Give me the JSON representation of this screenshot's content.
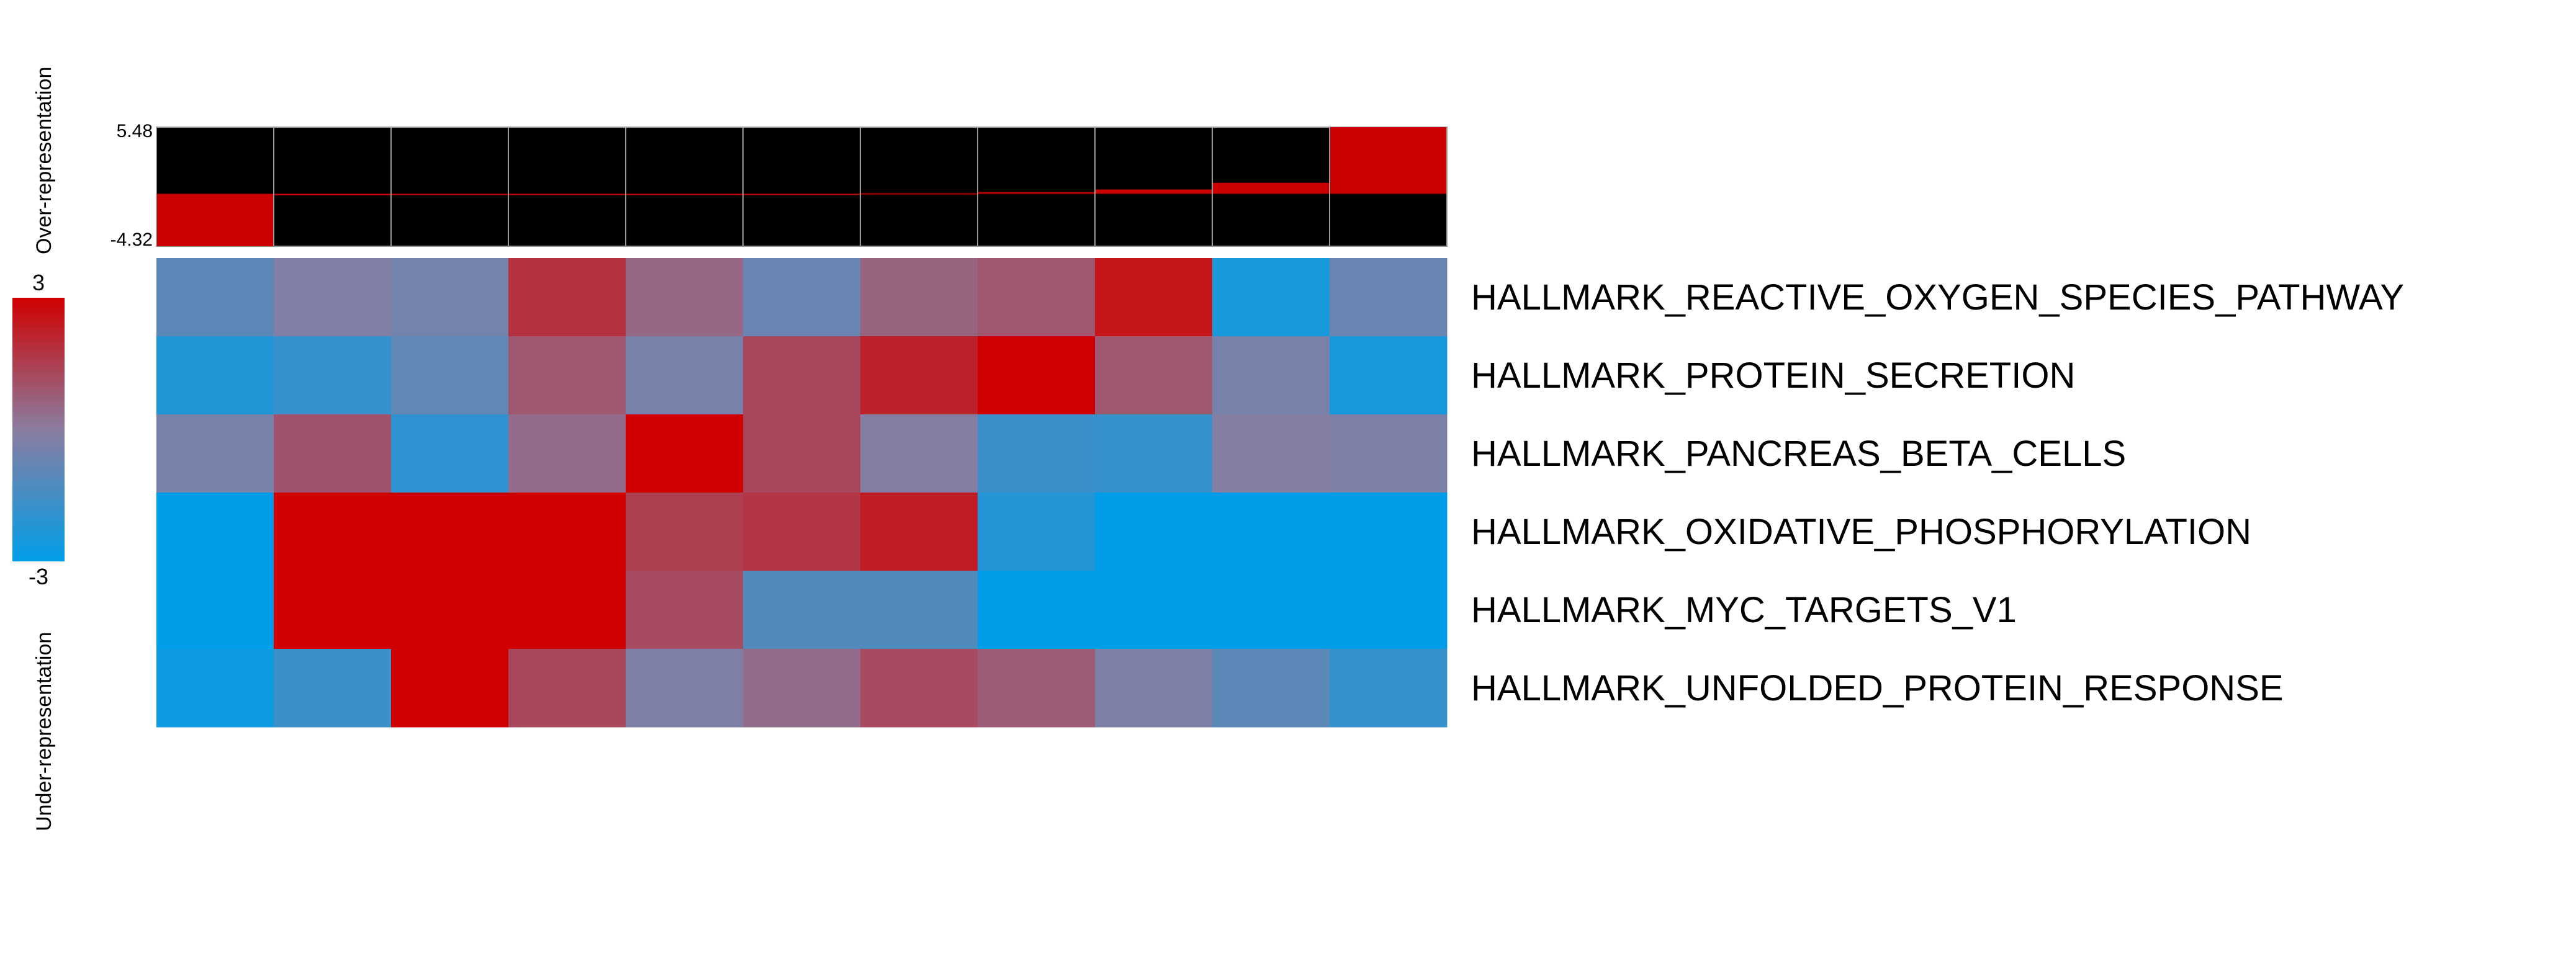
{
  "colors": {
    "high": "#d00000",
    "mid": "#8a7da0",
    "low": "#009ee8",
    "bar": "#cc0000",
    "bar_bg": "#000000",
    "cell_border": "#999999"
  },
  "chart_data": {
    "type": "heatmap",
    "title": "",
    "xlabel": "",
    "ylabel": "",
    "color_scale": {
      "min": -3,
      "max": 3,
      "min_label": "-3",
      "max_label": "3",
      "over_label": "Over-representation",
      "under_label": "Under-representation"
    },
    "bar_track": {
      "max": 5.48,
      "min": -4.32,
      "max_label": "5.48",
      "min_label": "-4.32",
      "values": [
        -4.32,
        -0.12,
        -0.05,
        -0.02,
        -0.01,
        0.0,
        0.04,
        0.14,
        0.35,
        0.9,
        5.48
      ]
    },
    "rows": [
      "HALLMARK_REACTIVE_OXYGEN_SPECIES_PATHWAY",
      "HALLMARK_PROTEIN_SECRETION",
      "HALLMARK_PANCREAS_BETA_CELLS",
      "HALLMARK_OXIDATIVE_PHOSPHORYLATION",
      "HALLMARK_MYC_TARGETS_V1",
      "HALLMARK_UNFOLDED_PROTEIN_RESPONSE"
    ],
    "values": [
      [
        -1.0,
        -0.2,
        -0.5,
        1.8,
        0.5,
        -0.7,
        0.6,
        0.9,
        2.5,
        -2.5,
        -0.7
      ],
      [
        -2.3,
        -1.8,
        -0.9,
        0.9,
        -0.4,
        1.3,
        2.2,
        3.0,
        0.9,
        -0.4,
        -2.5
      ],
      [
        -0.4,
        1.0,
        -2.0,
        0.4,
        3.0,
        1.3,
        -0.1,
        -1.7,
        -1.8,
        -0.1,
        -0.3
      ],
      [
        -3.0,
        3.0,
        3.0,
        3.0,
        1.5,
        1.7,
        2.3,
        -2.2,
        -3.0,
        -3.0,
        -3.0
      ],
      [
        -3.0,
        3.0,
        3.0,
        3.0,
        1.2,
        -1.2,
        -1.2,
        -3.0,
        -3.0,
        -3.0,
        -3.0
      ],
      [
        -2.7,
        -1.7,
        3.0,
        1.3,
        -0.3,
        0.4,
        1.2,
        0.8,
        -0.3,
        -1.0,
        -1.8
      ]
    ]
  }
}
